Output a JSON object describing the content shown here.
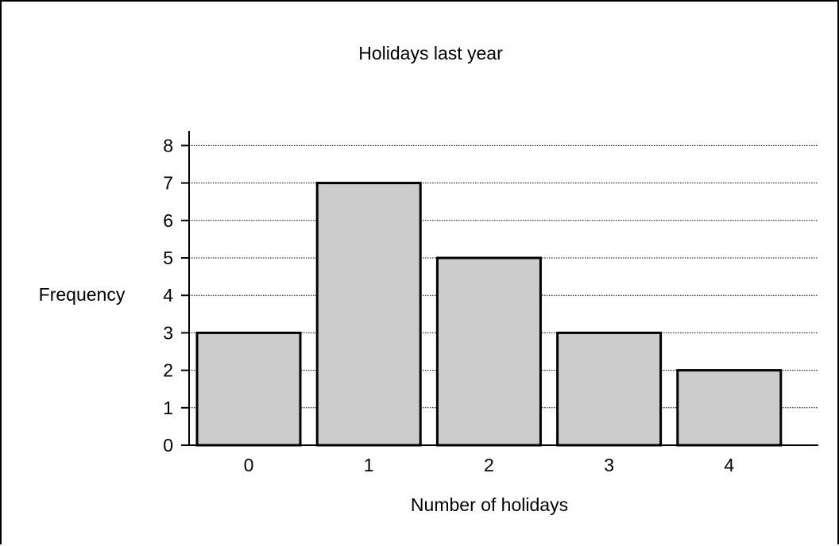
{
  "chart_data": {
    "type": "bar",
    "title": "Holidays last year",
    "xlabel": "Number of holidays",
    "ylabel": "Frequency",
    "categories": [
      "0",
      "1",
      "2",
      "3",
      "4"
    ],
    "values": [
      3,
      7,
      5,
      3,
      2
    ],
    "ylim": [
      0,
      8
    ],
    "yticks": [
      "0",
      "1",
      "2",
      "3",
      "4",
      "5",
      "6",
      "7",
      "8"
    ],
    "grid": true,
    "bar_color": "#cccccc",
    "bar_edge_color": "#000000"
  }
}
